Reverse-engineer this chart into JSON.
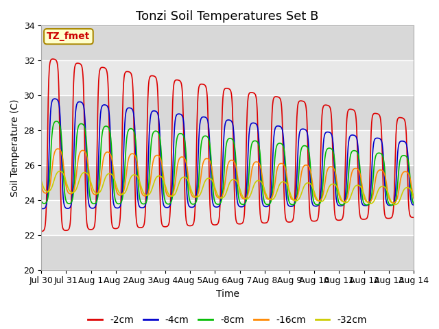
{
  "title": "Tonzi Soil Temperatures Set B",
  "xlabel": "Time",
  "ylabel": "Soil Temperature (C)",
  "ylim": [
    20,
    34
  ],
  "background_color": "#e8e8e8",
  "grid_color": "white",
  "annotation_text": "TZ_fmet",
  "annotation_bg": "#ffffcc",
  "annotation_border": "#aa8800",
  "xtick_labels": [
    "Jul 30",
    "Jul 31",
    "Aug 1",
    "Aug 2",
    "Aug 3",
    "Aug 4",
    "Aug 5",
    "Aug 6",
    "Aug 7",
    "Aug 8",
    "Aug 9",
    "Aug 10",
    "Aug 11",
    "Aug 12",
    "Aug 13",
    "Aug 14"
  ],
  "xtick_positions": [
    0,
    1,
    2,
    3,
    4,
    5,
    6,
    7,
    8,
    9,
    10,
    11,
    12,
    13,
    14,
    15
  ],
  "series": [
    {
      "label": "-2cm",
      "color": "#dd0000",
      "mean_s": 27.2,
      "mean_e": 25.8,
      "amp_s": 5.0,
      "amp_e": 2.8,
      "phase": 0.0,
      "sharp": 3.0
    },
    {
      "label": "-4cm",
      "color": "#0000cc",
      "mean_s": 26.7,
      "mean_e": 25.5,
      "amp_s": 3.2,
      "amp_e": 1.8,
      "phase": 0.4,
      "sharp": 2.5
    },
    {
      "label": "-8cm",
      "color": "#00bb00",
      "mean_s": 26.2,
      "mean_e": 25.1,
      "amp_s": 2.4,
      "amp_e": 1.4,
      "phase": 0.75,
      "sharp": 2.0
    },
    {
      "label": "-16cm",
      "color": "#ff8800",
      "mean_s": 25.7,
      "mean_e": 24.7,
      "amp_s": 1.3,
      "amp_e": 0.9,
      "phase": 1.1,
      "sharp": 1.5
    },
    {
      "label": "-32cm",
      "color": "#cccc00",
      "mean_s": 25.1,
      "mean_e": 24.2,
      "amp_s": 0.6,
      "amp_e": 0.5,
      "phase": 1.6,
      "sharp": 1.0
    }
  ],
  "legend_colors": [
    "#dd0000",
    "#0000cc",
    "#00bb00",
    "#ff8800",
    "#cccc00"
  ],
  "legend_labels": [
    "-2cm",
    "-4cm",
    "-8cm",
    "-16cm",
    "-32cm"
  ]
}
